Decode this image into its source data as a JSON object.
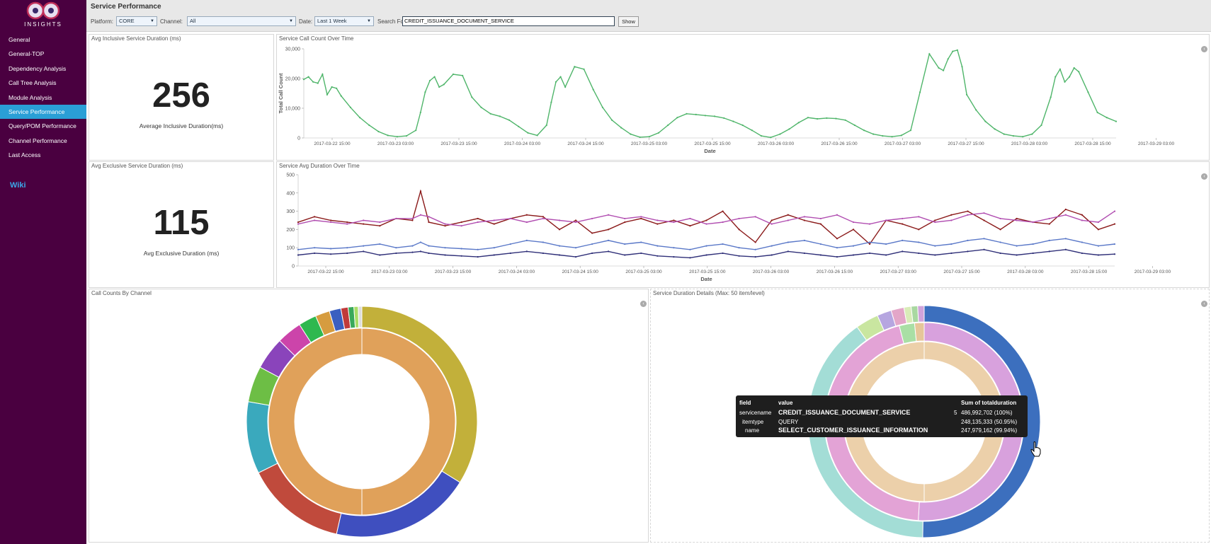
{
  "app": {
    "logo_text": "INSIGHTS",
    "page_title": "Service Performance"
  },
  "colors": {
    "sidebar": "#4a0040",
    "nav_active": "#2a9fd6",
    "wiki": "#3ba7e8",
    "header": "#e8e8e8",
    "line_green": "#4fb56a"
  },
  "nav": [
    {
      "label": "General"
    },
    {
      "label": "General-TOP"
    },
    {
      "label": "Dependency Analysis"
    },
    {
      "label": "Call Tree Analysis"
    },
    {
      "label": "Module Analysis"
    },
    {
      "label": "Service Performance",
      "active": true
    },
    {
      "label": "Query/POM Performance"
    },
    {
      "label": "Channel Performance"
    },
    {
      "label": "Last Access"
    }
  ],
  "wiki_label": "Wiki",
  "filters": {
    "platform_label": "Platform:",
    "platform_value": "CORE",
    "channel_label": "Channel:",
    "channel_value": "All",
    "date_label": "Date:",
    "date_value": "Last 1 Week",
    "search_label": "Search For:",
    "search_value": "CREDIT_ISSUANCE_DOCUMENT_SERVICE",
    "show_label": "Show"
  },
  "panels": {
    "inclusive_title": "Avg Inclusive Service Duration (ms)",
    "inclusive_value": "256",
    "inclusive_caption": "Average Inclusive Duration(ms)",
    "exclusive_title": "Avg Exclusive Service Duration (ms)",
    "exclusive_value": "115",
    "exclusive_caption": "Avg Exclusive Duration (ms)",
    "callcount_title": "Service Call Count Over Time",
    "avgdur_title": "Service Avg Duration Over Time",
    "channel_title": "Call Counts By Channel",
    "details_title": "Service Duration Details (Max: 50 item/level)"
  },
  "chart_data": [
    {
      "type": "line",
      "xlabel": "Date",
      "ylabel": "Total Call Count",
      "ylim": [
        0,
        35000
      ],
      "yticks": [
        "0",
        "10,000",
        "20,000",
        "30,000"
      ],
      "xticks": [
        "2017-03-22 15:00",
        "2017-03-23 03:00",
        "2017-03-23 15:00",
        "2017-03-24 03:00",
        "2017-03-24 15:00",
        "2017-03-25 03:00",
        "2017-03-25 15:00",
        "2017-03-26 03:00",
        "2017-03-26 15:00",
        "2017-03-27 03:00",
        "2017-03-27 15:00",
        "2017-03-28 03:00",
        "2017-03-28 15:00",
        "2017-03-29 03:00"
      ],
      "x": [
        0,
        0.25,
        0.5,
        0.75,
        1,
        1.25,
        1.5,
        1.75,
        2,
        2.5,
        3,
        3.5,
        4,
        4.5,
        5,
        5.5,
        6,
        6.25,
        6.5,
        6.75,
        7,
        7.25,
        7.5,
        8,
        8.5,
        9,
        9.5,
        10,
        10.5,
        11,
        11.5,
        12,
        12.5,
        13,
        13.25,
        13.5,
        13.75,
        14,
        14.5,
        15,
        15.5,
        16,
        16.5,
        17,
        17.5,
        18,
        18.5,
        19,
        19.5,
        20,
        20.5,
        21,
        21.5,
        22,
        22.5,
        23,
        23.5,
        24,
        24.5,
        25,
        25.5,
        26,
        26.5,
        27,
        27.5,
        28,
        28.5,
        29,
        29.5,
        30,
        30.5,
        31,
        31.5,
        32,
        32.5,
        33,
        33.5,
        34,
        34.25,
        34.5,
        34.75,
        35,
        35.25,
        35.5,
        36,
        36.5,
        37,
        37.5,
        38,
        38.5,
        39,
        39.5,
        40,
        40.25,
        40.5,
        40.75,
        41,
        41.25,
        41.5,
        42,
        42.5,
        43,
        43.5
      ],
      "series": [
        {
          "values": [
            23000,
            24000,
            22000,
            21500,
            25000,
            17000,
            20000,
            19500,
            16500,
            12000,
            8000,
            5000,
            2500,
            1000,
            500,
            800,
            3000,
            10000,
            18000,
            22500,
            24000,
            20000,
            21000,
            25000,
            24500,
            16000,
            12000,
            9500,
            8500,
            7000,
            4500,
            2000,
            1000,
            5000,
            14000,
            22000,
            24000,
            20000,
            28000,
            27000,
            19000,
            12000,
            7000,
            4000,
            1500,
            300,
            500,
            2000,
            5000,
            8000,
            9500,
            9200,
            8800,
            8500,
            7800,
            6500,
            5000,
            3000,
            800,
            200,
            1500,
            3500,
            6000,
            8000,
            7500,
            7800,
            7600,
            7000,
            5000,
            3000,
            1500,
            800,
            500,
            1000,
            3000,
            18000,
            33000,
            27500,
            26500,
            31000,
            34000,
            34500,
            28000,
            17000,
            11000,
            6500,
            3500,
            1500,
            800,
            500,
            1500,
            5000,
            16000,
            24000,
            27000,
            22000,
            24000,
            27500,
            26000,
            18000,
            10000,
            8000,
            6500
          ]
        }
      ]
    },
    {
      "type": "line",
      "xlabel": "Date",
      "ylim": [
        0,
        500
      ],
      "yticks": [
        "0",
        "100",
        "200",
        "300",
        "400",
        "500"
      ],
      "xticks": [
        "2017-03-22 15:00",
        "2017-03-23 03:00",
        "2017-03-23 15:00",
        "2017-03-24 03:00",
        "2017-03-24 15:00",
        "2017-03-25 03:00",
        "2017-03-25 15:00",
        "2017-03-26 03:00",
        "2017-03-26 15:00",
        "2017-03-27 03:00",
        "2017-03-27 15:00",
        "2017-03-28 03:00",
        "2017-03-28 15:00",
        "2017-03-29 03:00"
      ],
      "x": [
        0,
        2,
        4,
        6,
        8,
        10,
        12,
        14,
        15,
        16,
        18,
        20,
        22,
        24,
        26,
        28,
        30,
        32,
        34,
        36,
        38,
        40,
        42,
        44,
        46,
        48,
        50,
        52,
        54,
        56,
        58,
        60,
        62,
        64,
        66,
        68,
        70,
        72,
        74,
        76,
        78,
        80,
        82,
        84,
        86,
        88,
        90,
        92,
        94,
        96,
        98,
        100
      ],
      "series": [
        {
          "color": "#8b1a1a",
          "values": [
            240,
            270,
            250,
            240,
            230,
            220,
            260,
            250,
            410,
            240,
            220,
            240,
            260,
            230,
            260,
            280,
            270,
            200,
            250,
            180,
            200,
            240,
            260,
            230,
            250,
            220,
            250,
            300,
            200,
            130,
            250,
            280,
            250,
            230,
            150,
            200,
            120,
            250,
            230,
            200,
            250,
            280,
            300,
            250,
            200,
            260,
            240,
            230,
            310,
            280,
            200,
            230
          ]
        },
        {
          "color": "#b14eb1",
          "values": [
            230,
            250,
            240,
            230,
            250,
            240,
            260,
            260,
            280,
            270,
            230,
            220,
            240,
            250,
            260,
            240,
            260,
            250,
            240,
            260,
            280,
            260,
            270,
            250,
            240,
            260,
            230,
            240,
            260,
            270,
            230,
            250,
            270,
            260,
            280,
            240,
            230,
            250,
            260,
            270,
            240,
            250,
            280,
            290,
            260,
            250,
            240,
            260,
            280,
            250,
            240,
            300
          ]
        },
        {
          "color": "#5a78c8",
          "values": [
            90,
            100,
            95,
            100,
            110,
            120,
            100,
            110,
            130,
            110,
            100,
            95,
            90,
            100,
            120,
            140,
            130,
            110,
            100,
            120,
            140,
            120,
            130,
            110,
            100,
            90,
            110,
            120,
            100,
            90,
            110,
            130,
            140,
            120,
            100,
            110,
            130,
            120,
            140,
            130,
            110,
            120,
            140,
            150,
            130,
            110,
            120,
            140,
            150,
            130,
            110,
            120
          ]
        },
        {
          "color": "#2f2f78",
          "values": [
            60,
            70,
            65,
            70,
            80,
            60,
            70,
            75,
            80,
            70,
            60,
            55,
            50,
            60,
            70,
            80,
            70,
            60,
            50,
            70,
            80,
            60,
            70,
            55,
            50,
            45,
            60,
            70,
            55,
            50,
            60,
            80,
            70,
            60,
            50,
            60,
            70,
            60,
            80,
            70,
            60,
            70,
            80,
            90,
            70,
            60,
            70,
            80,
            90,
            70,
            60,
            65
          ]
        }
      ]
    },
    {
      "type": "pie",
      "rings": [
        {
          "label": "inner",
          "slices": [
            {
              "value": 100,
              "color": "#e0a15a"
            }
          ]
        },
        {
          "label": "outer",
          "slices": [
            {
              "value": 33.5,
              "color": "#c2b03a"
            },
            {
              "value": 19.5,
              "color": "#3f4fbf"
            },
            {
              "value": 14.0,
              "color": "#c04a3c"
            },
            {
              "value": 10.0,
              "color": "#3aa9bd"
            },
            {
              "value": 5.0,
              "color": "#6dbe45"
            },
            {
              "value": 4.5,
              "color": "#8a44bb"
            },
            {
              "value": 3.5,
              "color": "#cc44aa"
            },
            {
              "value": 2.5,
              "color": "#2fb84f"
            },
            {
              "value": 2.0,
              "color": "#d69c3f"
            },
            {
              "value": 1.6,
              "color": "#3a5fc0"
            },
            {
              "value": 1.0,
              "color": "#c03a3a"
            },
            {
              "value": 0.8,
              "color": "#3aa95a"
            },
            {
              "value": 0.6,
              "color": "#aadd66"
            },
            {
              "value": 0.5,
              "color": "#dddddd"
            }
          ]
        }
      ]
    },
    {
      "type": "pie",
      "rings": [
        {
          "label": "inner",
          "slices": [
            {
              "value": 100,
              "color": "#ecd0aa"
            }
          ]
        },
        {
          "label": "middle",
          "slices": [
            {
              "value": 50.95,
              "color": "#d8a1dd"
            },
            {
              "value": 45.0,
              "color": "#e3a3d6"
            },
            {
              "value": 2.5,
              "color": "#a9dfa5"
            },
            {
              "value": 1.55,
              "color": "#e6c69a"
            }
          ]
        },
        {
          "label": "outer",
          "slices": [
            {
              "value": 50.2,
              "color": "#3c6fbe"
            },
            {
              "value": 40.0,
              "color": "#a3ddd6"
            },
            {
              "value": 3.2,
              "color": "#c9e6a0"
            },
            {
              "value": 2.0,
              "color": "#b6a6e0"
            },
            {
              "value": 1.8,
              "color": "#e3a6c8"
            },
            {
              "value": 1.0,
              "color": "#d9ecb8"
            },
            {
              "value": 0.9,
              "color": "#a9d8a1"
            },
            {
              "value": 0.9,
              "color": "#cfa3db"
            }
          ]
        }
      ]
    }
  ],
  "tooltip": {
    "headers": [
      "field",
      "value",
      "Sum of totalduration"
    ],
    "rows": [
      {
        "field": "servicename",
        "value": "CREDIT_ISSUANCE_DOCUMENT_SERVICE",
        "mark": "5",
        "sum": "486,992,702 (100%)"
      },
      {
        "field": "itemtype",
        "value": "QUERY",
        "mark": "",
        "sum": "248,135,333 (50.95%)"
      },
      {
        "field": "name",
        "value": "SELECT_CUSTOMER_ISSUANCE_INFORMATION",
        "mark": "",
        "sum": "247,979,162 (99.94%)"
      }
    ]
  }
}
